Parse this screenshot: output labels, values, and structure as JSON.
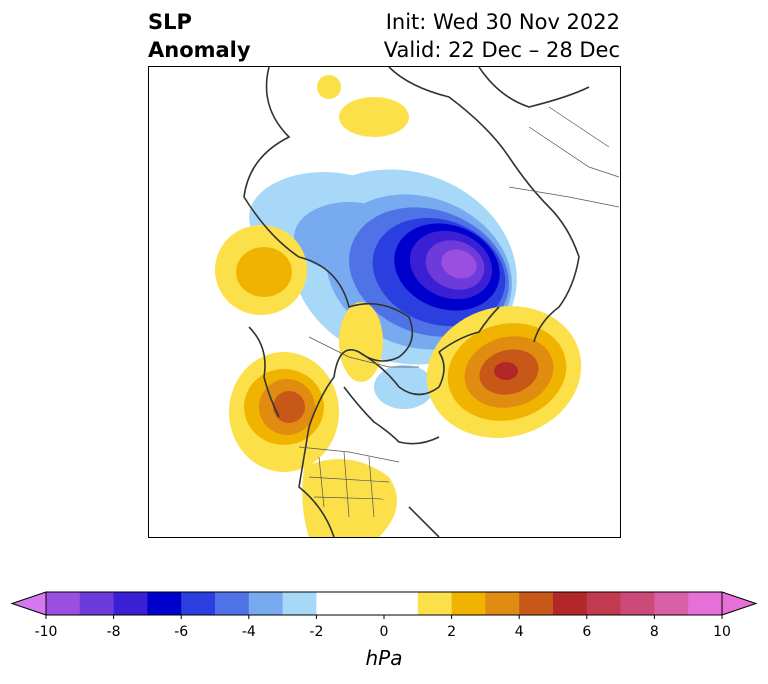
{
  "title": {
    "left_line1": "SLP",
    "left_line2": "Anomaly",
    "right_line1": "Init: Wed 30 Nov 2022",
    "right_line2": "Valid: 22 Dec – 28 Dec"
  },
  "colorbar": {
    "unit": "hPa",
    "ticks": [
      "-10",
      "-8",
      "-6",
      "-4",
      "-2",
      "0",
      "2",
      "4",
      "6",
      "8",
      "10"
    ],
    "levels": [
      -10,
      -9,
      -8,
      -7,
      -6,
      -5,
      -4,
      -3,
      -2,
      -1,
      1,
      2,
      3,
      4,
      5,
      6,
      7,
      8,
      9,
      10
    ],
    "colors": [
      "#9b4fe0",
      "#6c3bd9",
      "#3a1fd4",
      "#0000cd",
      "#2b3fe0",
      "#4f73e6",
      "#78aaf0",
      "#a8d8f8",
      "#ffffff",
      "#ffffff",
      "#fbe04a",
      "#f0b400",
      "#e08c10",
      "#c85818",
      "#b22828",
      "#c23a50",
      "#cc4a78",
      "#d860a8",
      "#e670d8"
    ],
    "extend_low_color": "#d678f0",
    "extend_high_color": "#e670d8"
  },
  "map": {
    "variable": "Sea level pressure anomaly",
    "anomalies": [
      {
        "name": "arctic-low",
        "sign": "negative",
        "peak_hpa": -10
      },
      {
        "name": "north-atlantic-high",
        "sign": "positive",
        "peak_hpa": 6
      },
      {
        "name": "northeast-pacific-high",
        "sign": "positive",
        "peak_hpa": 5
      },
      {
        "name": "bering-high",
        "sign": "positive",
        "peak_hpa": 2
      },
      {
        "name": "eurasia-high",
        "sign": "positive",
        "peak_hpa": 1
      },
      {
        "name": "hudson-bay-low",
        "sign": "negative",
        "peak_hpa": -2
      },
      {
        "name": "southern-us-high",
        "sign": "positive",
        "peak_hpa": 1
      }
    ]
  }
}
